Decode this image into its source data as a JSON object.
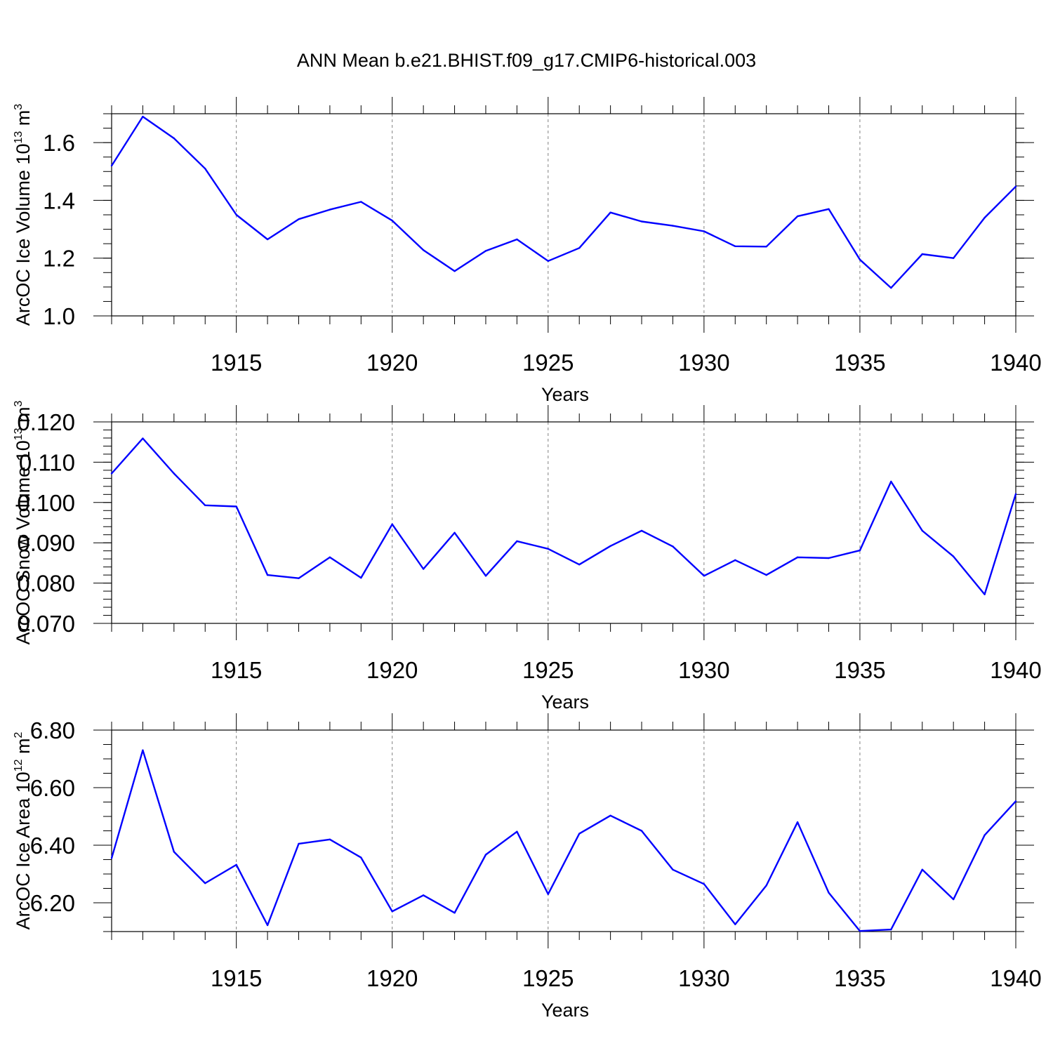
{
  "colors": {
    "series": "#0000ff",
    "grid": "#808080",
    "frame": "#000000",
    "background": "#ffffff"
  },
  "figure": {
    "title": "ANN Mean b.e21.BHIST.f09_g17.CMIP6-historical.003"
  },
  "chart_data": [
    {
      "type": "line",
      "title": "ANN Mean b.e21.BHIST.f09_g17.CMIP6-historical.003",
      "xlabel": "Years",
      "ylabel": {
        "text": "ArcOC Ice Volume 10",
        "exp": "13",
        "unit": " m",
        "unit_exp": "3"
      },
      "xlim": [
        1911,
        1940
      ],
      "ylim": [
        1.0,
        1.7
      ],
      "xticks": [
        1915,
        1920,
        1925,
        1930,
        1935,
        1940
      ],
      "yticks": [
        1.0,
        1.2,
        1.4,
        1.6
      ],
      "ytick_labels": [
        "1.0",
        "1.2",
        "1.4",
        "1.6"
      ],
      "yminor_step": 0.05,
      "grid": "vertical dashed at major x ticks",
      "series": [
        {
          "name": "ArcOC Ice Volume",
          "x": [
            1911,
            1912,
            1913,
            1914,
            1915,
            1916,
            1917,
            1918,
            1919,
            1920,
            1921,
            1922,
            1923,
            1924,
            1925,
            1926,
            1927,
            1928,
            1929,
            1930,
            1931,
            1932,
            1933,
            1934,
            1935,
            1936,
            1937,
            1938,
            1939,
            1940
          ],
          "values": [
            1.52,
            1.69,
            1.615,
            1.51,
            1.35,
            1.265,
            1.335,
            1.368,
            1.395,
            1.33,
            1.228,
            1.155,
            1.225,
            1.265,
            1.19,
            1.235,
            1.358,
            1.327,
            1.312,
            1.293,
            1.241,
            1.24,
            1.345,
            1.37,
            1.195,
            1.097,
            1.214,
            1.2,
            1.34,
            1.448
          ]
        }
      ]
    },
    {
      "type": "line",
      "xlabel": "Years",
      "ylabel": {
        "text": "ArcOC Snow Volume 10",
        "exp": "13",
        "unit": " m",
        "unit_exp": "3"
      },
      "xlim": [
        1911,
        1940
      ],
      "ylim": [
        0.07,
        0.12
      ],
      "xticks": [
        1915,
        1920,
        1925,
        1930,
        1935,
        1940
      ],
      "yticks": [
        0.07,
        0.08,
        0.09,
        0.1,
        0.11,
        0.12
      ],
      "ytick_labels": [
        "0.070",
        "0.080",
        "0.090",
        "0.100",
        "0.110",
        "0.120"
      ],
      "yminor_step": 0.002,
      "grid": "vertical dashed at major x ticks",
      "series": [
        {
          "name": "ArcOC Snow Volume",
          "x": [
            1911,
            1912,
            1913,
            1914,
            1915,
            1916,
            1917,
            1918,
            1919,
            1920,
            1921,
            1922,
            1923,
            1924,
            1925,
            1926,
            1927,
            1928,
            1929,
            1930,
            1931,
            1932,
            1933,
            1934,
            1935,
            1936,
            1937,
            1938,
            1939,
            1940
          ],
          "values": [
            0.1072,
            0.1159,
            0.1072,
            0.0993,
            0.099,
            0.082,
            0.0812,
            0.0864,
            0.0813,
            0.0946,
            0.0835,
            0.0925,
            0.0818,
            0.0904,
            0.0885,
            0.0846,
            0.0892,
            0.093,
            0.0891,
            0.0818,
            0.0857,
            0.082,
            0.0864,
            0.0862,
            0.0881,
            0.1052,
            0.093,
            0.0866,
            0.0772,
            0.1021
          ]
        }
      ]
    },
    {
      "type": "line",
      "xlabel": "Years",
      "ylabel": {
        "text": "ArcOC Ice Area 10",
        "exp": "12",
        "unit": " m",
        "unit_exp": "2"
      },
      "xlim": [
        1911,
        1940
      ],
      "ylim": [
        6.1,
        6.8
      ],
      "xticks": [
        1915,
        1920,
        1925,
        1930,
        1935,
        1940
      ],
      "yticks": [
        6.2,
        6.4,
        6.6,
        6.8
      ],
      "ytick_labels": [
        "6.20",
        "6.40",
        "6.60",
        "6.80"
      ],
      "yminor_step": 0.05,
      "grid": "vertical dashed at major x ticks",
      "series": [
        {
          "name": "ArcOC Ice Area",
          "x": [
            1911,
            1912,
            1913,
            1914,
            1915,
            1916,
            1917,
            1918,
            1919,
            1920,
            1921,
            1922,
            1923,
            1924,
            1925,
            1926,
            1927,
            1928,
            1929,
            1930,
            1931,
            1932,
            1933,
            1934,
            1935,
            1936,
            1937,
            1938,
            1939,
            1940
          ],
          "values": [
            6.355,
            6.73,
            6.377,
            6.268,
            6.332,
            6.122,
            6.405,
            6.42,
            6.357,
            6.17,
            6.226,
            6.165,
            6.367,
            6.447,
            6.23,
            6.44,
            6.503,
            6.45,
            6.315,
            6.265,
            6.125,
            6.26,
            6.48,
            6.235,
            6.102,
            6.107,
            6.315,
            6.212,
            6.435,
            6.553
          ]
        }
      ]
    }
  ]
}
